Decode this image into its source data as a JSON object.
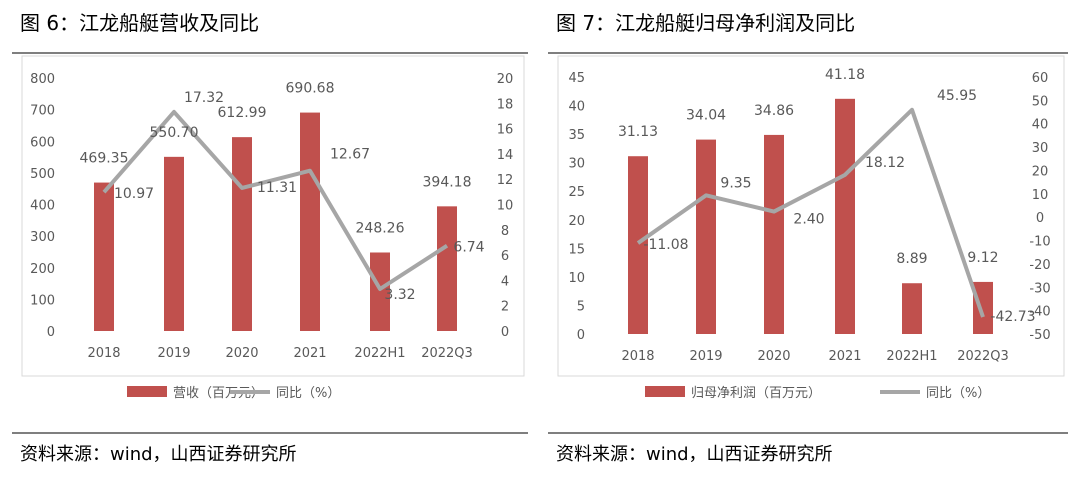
{
  "chart_data": [
    {
      "type": "bar+line",
      "title": "图 6：江龙船艇营收及同比",
      "categories": [
        "2018",
        "2019",
        "2020",
        "2021",
        "2022H1",
        "2022Q3"
      ],
      "series": [
        {
          "name": "营收（百万元）",
          "type": "bar",
          "axis": "left",
          "values": [
            469.35,
            550.7,
            612.99,
            690.68,
            248.26,
            394.18
          ],
          "labels": [
            "469.35",
            "550.70",
            "612.99",
            "690.68",
            "248.26",
            "394.18"
          ]
        },
        {
          "name": "同比（%）",
          "type": "line",
          "axis": "right",
          "values": [
            10.97,
            17.32,
            11.31,
            12.67,
            3.32,
            6.74
          ],
          "labels": [
            "10.97",
            "17.32",
            "11.31",
            "12.67",
            "3.32",
            "6.74"
          ]
        }
      ],
      "ylim_left": [
        0,
        800
      ],
      "yticks_left": [
        "0",
        "100",
        "200",
        "300",
        "400",
        "500",
        "600",
        "700",
        "800"
      ],
      "ylim_right": [
        0,
        20
      ],
      "yticks_right": [
        "0",
        "2",
        "4",
        "6",
        "8",
        "10",
        "12",
        "14",
        "16",
        "18",
        "20"
      ],
      "legend": "bottom",
      "grid": false,
      "source": "资料来源：wind，山西证券研究所"
    },
    {
      "type": "bar+line",
      "title": "图 7：江龙船艇归母净利润及同比",
      "categories": [
        "2018",
        "2019",
        "2020",
        "2021",
        "2022H1",
        "2022Q3"
      ],
      "series": [
        {
          "name": "归母净利润（百万元）",
          "type": "bar",
          "axis": "left",
          "values": [
            31.13,
            34.04,
            34.86,
            41.18,
            8.89,
            9.12
          ],
          "labels": [
            "31.13",
            "34.04",
            "34.86",
            "41.18",
            "8.89",
            "9.12"
          ]
        },
        {
          "name": "同比（%）",
          "type": "line",
          "axis": "right",
          "values": [
            -11.08,
            9.35,
            2.4,
            18.12,
            45.95,
            -42.73
          ],
          "labels": [
            "-11.08",
            "9.35",
            "2.40",
            "18.12",
            "45.95",
            "-42.73"
          ]
        }
      ],
      "ylim_left": [
        0,
        45
      ],
      "yticks_left": [
        "0",
        "5",
        "10",
        "15",
        "20",
        "25",
        "30",
        "35",
        "40",
        "45"
      ],
      "ylim_right": [
        -50,
        60
      ],
      "yticks_right": [
        "-50",
        "-40",
        "-30",
        "-20",
        "-10",
        "0",
        "10",
        "20",
        "30",
        "40",
        "50",
        "60"
      ],
      "legend": "bottom",
      "grid": false,
      "source": "资料来源：wind，山西证券研究所"
    }
  ],
  "colors": {
    "bar": "#c0504d",
    "line": "#a6a6a6",
    "text": "#595959"
  }
}
